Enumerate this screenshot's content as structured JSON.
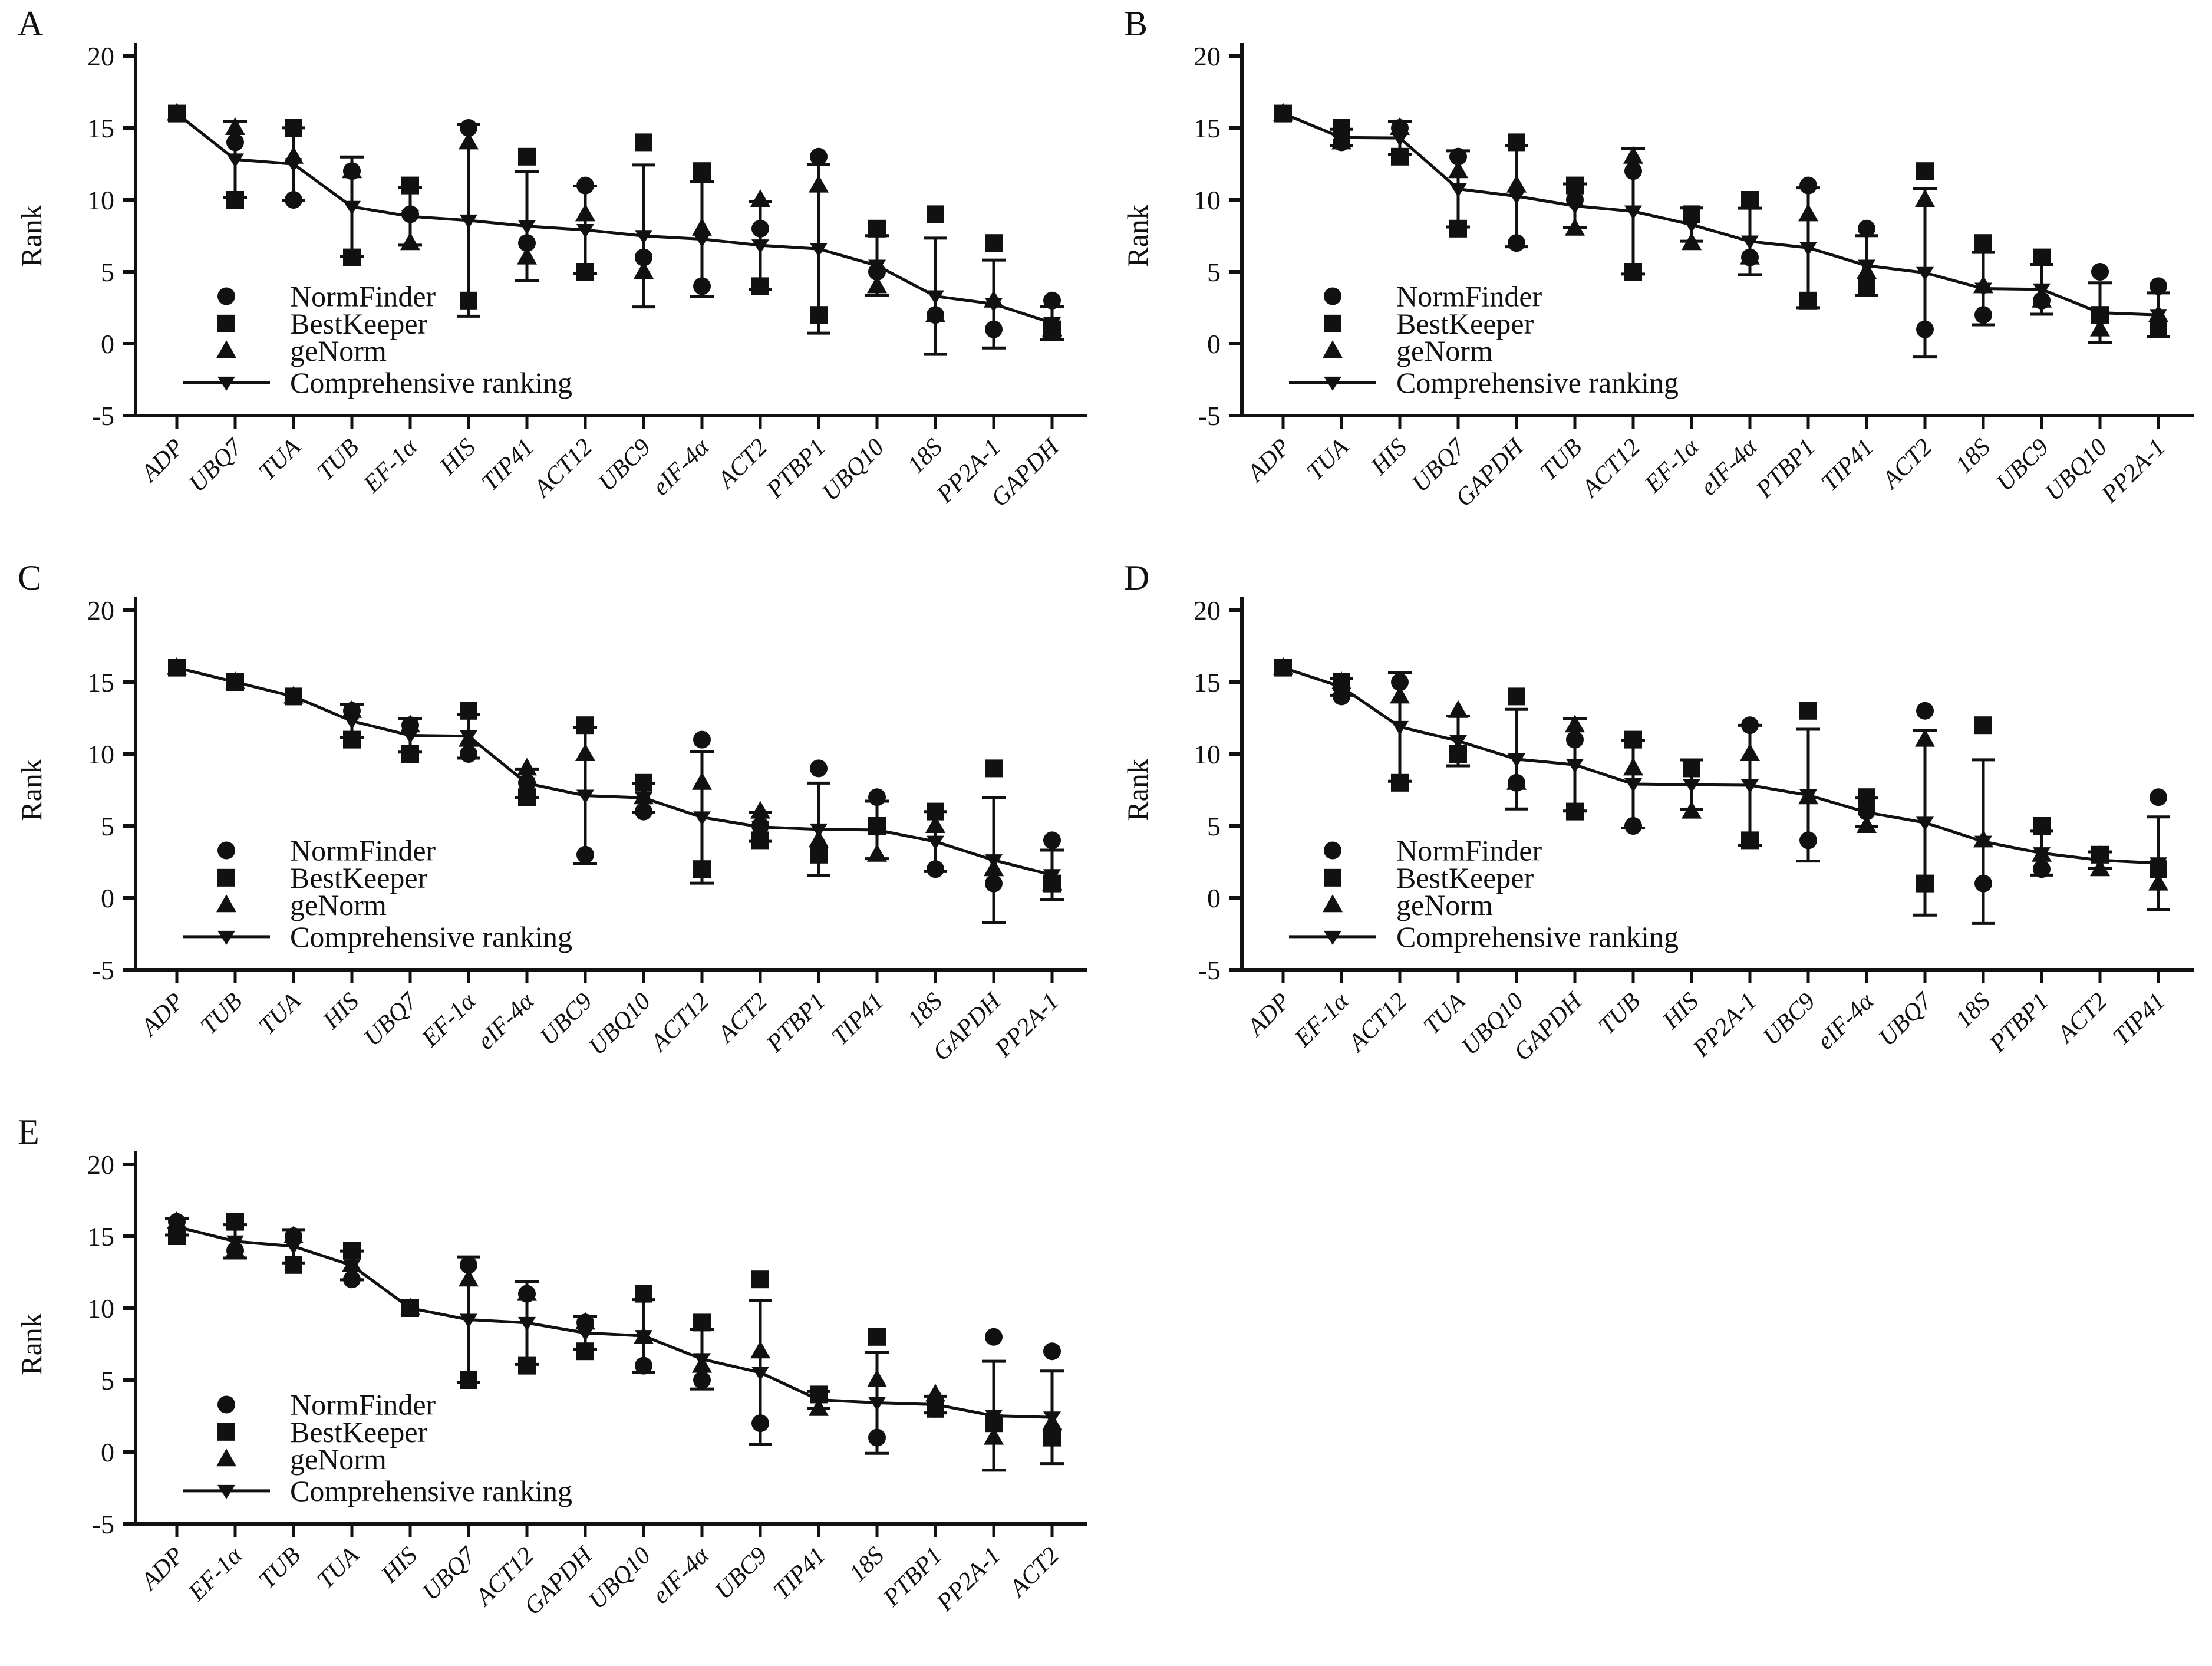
{
  "figure": {
    "background": "#ffffff",
    "ink": "#111111",
    "description": "Expression stability ranking of 16 candidate reference genes under five conditions (panels A-E)"
  },
  "axis": {
    "ylabel": "Rank",
    "ymin": -5,
    "ymax": 20,
    "yticks": [
      20,
      15,
      10,
      5,
      0,
      -5
    ]
  },
  "legend": [
    {
      "marker": "circle",
      "label": "NormFinder"
    },
    {
      "marker": "square",
      "label": "BestKeeper"
    },
    {
      "marker": "triangle-up",
      "label": "geNorm"
    },
    {
      "marker": "triangle-down-line",
      "label": "Comprehensive ranking"
    }
  ],
  "chart_data": [
    {
      "panel": "A",
      "type": "scatter",
      "ylabel": "Rank",
      "ylim": [
        -5,
        20
      ],
      "categories": [
        "ADP",
        "UBQ7",
        "TUA",
        "TUB",
        "EF-1α",
        "HIS",
        "TIP41",
        "ACT12",
        "UBC9",
        "eIF-4α",
        "ACT2",
        "PTBP1",
        "UBQ10",
        "18S",
        "PP2A-1",
        "GAPDH"
      ],
      "series": [
        {
          "name": "NormFinder",
          "marker": "circle",
          "values": [
            16,
            14,
            10,
            12,
            9,
            15,
            7,
            11,
            6,
            4,
            8,
            13,
            5,
            2,
            1,
            3
          ]
        },
        {
          "name": "BestKeeper",
          "marker": "square",
          "values": [
            16,
            10,
            15,
            6,
            11,
            3,
            13,
            5,
            14,
            12,
            4,
            2,
            8,
            9,
            7,
            1
          ]
        },
        {
          "name": "geNorm",
          "marker": "triangle-up",
          "values": [
            16,
            15,
            13,
            12,
            7,
            14,
            6,
            9,
            5,
            8,
            10,
            11,
            4,
            2,
            3,
            1
          ]
        },
        {
          "name": "Comprehensive ranking",
          "marker": "triangle-down",
          "values": [
            16,
            12.81,
            12.49,
            9.52,
            8.85,
            8.57,
            8.17,
            7.91,
            7.49,
            7.27,
            6.84,
            6.59,
            5.43,
            3.3,
            2.76,
            1.44
          ]
        }
      ],
      "error_bars": "comprehensive value ± SD of the three method ranks"
    },
    {
      "panel": "B",
      "type": "scatter",
      "ylabel": "Rank",
      "ylim": [
        -5,
        20
      ],
      "categories": [
        "ADP",
        "TUA",
        "HIS",
        "UBQ7",
        "GAPDH",
        "TUB",
        "ACT12",
        "EF-1α",
        "eIF-4α",
        "PTBP1",
        "TIP41",
        "ACT2",
        "18S",
        "UBC9",
        "UBQ10",
        "PP2A-1"
      ],
      "series": [
        {
          "name": "NormFinder",
          "marker": "circle",
          "values": [
            16,
            14,
            15,
            13,
            7,
            10,
            12,
            9,
            6,
            11,
            8,
            1,
            2,
            3,
            5,
            4
          ]
        },
        {
          "name": "BestKeeper",
          "marker": "square",
          "values": [
            16,
            15,
            13,
            8,
            14,
            11,
            5,
            9,
            10,
            3,
            4,
            12,
            7,
            6,
            2,
            1
          ]
        },
        {
          "name": "geNorm",
          "marker": "triangle-up",
          "values": [
            16,
            14,
            15,
            12,
            11,
            8,
            13,
            7,
            6,
            9,
            5,
            10,
            4,
            3,
            1,
            2
          ]
        },
        {
          "name": "Comprehensive ranking",
          "marker": "triangle-down",
          "values": [
            16,
            14.33,
            14.3,
            10.76,
            10.25,
            9.58,
            9.2,
            8.28,
            7.11,
            6.67,
            5.43,
            4.93,
            3.83,
            3.78,
            2.15,
            2.0
          ]
        }
      ],
      "error_bars": "comprehensive value ± SD of the three method ranks"
    },
    {
      "panel": "C",
      "type": "scatter",
      "ylabel": "Rank",
      "ylim": [
        -5,
        20
      ],
      "categories": [
        "ADP",
        "TUB",
        "TUA",
        "HIS",
        "UBQ7",
        "EF-1α",
        "eIF-4α",
        "UBC9",
        "UBQ10",
        "ACT12",
        "ACT2",
        "PTBP1",
        "TIP41",
        "18S",
        "GAPDH",
        "PP2A-1"
      ],
      "series": [
        {
          "name": "NormFinder",
          "marker": "circle",
          "values": [
            16,
            15,
            14,
            13,
            12,
            10,
            8,
            3,
            6,
            11,
            5,
            9,
            7,
            2,
            1,
            4
          ]
        },
        {
          "name": "BestKeeper",
          "marker": "square",
          "values": [
            16,
            15,
            14,
            11,
            10,
            13,
            7,
            12,
            8,
            2,
            4,
            3,
            5,
            6,
            9,
            1
          ]
        },
        {
          "name": "geNorm",
          "marker": "triangle-up",
          "values": [
            16,
            15,
            14,
            13,
            12,
            11,
            9,
            10,
            7,
            8,
            6,
            4,
            3,
            5,
            2,
            1
          ]
        },
        {
          "name": "Comprehensive ranking",
          "marker": "triangle-down",
          "values": [
            16,
            15,
            14,
            12.29,
            11.29,
            11.24,
            7.96,
            7.11,
            6.95,
            5.6,
            4.93,
            4.76,
            4.72,
            3.91,
            2.62,
            1.59
          ]
        }
      ],
      "error_bars": "comprehensive value ± SD of the three method ranks"
    },
    {
      "panel": "D",
      "type": "scatter",
      "ylabel": "Rank",
      "ylim": [
        -5,
        20
      ],
      "categories": [
        "ADP",
        "EF-1α",
        "ACT12",
        "TUA",
        "UBQ10",
        "GAPDH",
        "TUB",
        "HIS",
        "PP2A-1",
        "UBC9",
        "eIF-4α",
        "UBQ7",
        "18S",
        "PTBP1",
        "ACT2",
        "TIP41"
      ],
      "series": [
        {
          "name": "NormFinder",
          "marker": "circle",
          "values": [
            16,
            14,
            15,
            10,
            8,
            11,
            5,
            9,
            12,
            4,
            6,
            13,
            1,
            2,
            3,
            7
          ]
        },
        {
          "name": "BestKeeper",
          "marker": "square",
          "values": [
            16,
            15,
            8,
            10,
            14,
            6,
            11,
            9,
            4,
            13,
            7,
            1,
            12,
            5,
            3,
            2
          ]
        },
        {
          "name": "geNorm",
          "marker": "triangle-up",
          "values": [
            16,
            15,
            14,
            13,
            8,
            12,
            9,
            6,
            10,
            7,
            5,
            11,
            4,
            3,
            2,
            1
          ]
        },
        {
          "name": "Comprehensive ranking",
          "marker": "triangle-down",
          "values": [
            16,
            14.66,
            11.89,
            10.91,
            9.64,
            9.25,
            7.91,
            7.86,
            7.83,
            7.14,
            5.94,
            5.23,
            3.91,
            3.11,
            2.62,
            2.41
          ]
        }
      ],
      "error_bars": "comprehensive value ± SD of the three method ranks"
    },
    {
      "panel": "E",
      "type": "scatter",
      "ylabel": "Rank",
      "ylim": [
        -5,
        20
      ],
      "categories": [
        "ADP",
        "EF-1α",
        "TUB",
        "TUA",
        "HIS",
        "UBQ7",
        "ACT12",
        "GAPDH",
        "UBQ10",
        "eIF-4α",
        "UBC9",
        "TIP41",
        "18S",
        "PTBP1",
        "PP2A-1",
        "ACT2"
      ],
      "series": [
        {
          "name": "NormFinder",
          "marker": "circle",
          "values": [
            16,
            14,
            15,
            12,
            10,
            13,
            11,
            9,
            6,
            5,
            2,
            4,
            1,
            3,
            8,
            7
          ]
        },
        {
          "name": "BestKeeper",
          "marker": "square",
          "values": [
            15,
            16,
            13,
            14,
            10,
            5,
            6,
            7,
            11,
            9,
            12,
            4,
            8,
            3,
            2,
            1
          ]
        },
        {
          "name": "geNorm",
          "marker": "triangle-up",
          "values": [
            16,
            14,
            15,
            13,
            10,
            12,
            11,
            9,
            8,
            6,
            7,
            3,
            5,
            4,
            1,
            2
          ]
        },
        {
          "name": "Comprehensive ranking",
          "marker": "triangle-down",
          "values": [
            15.66,
            14.64,
            14.3,
            12.97,
            10.0,
            9.2,
            8.98,
            8.28,
            8.07,
            6.46,
            5.52,
            3.63,
            3.42,
            3.3,
            2.52,
            2.41
          ]
        }
      ],
      "error_bars": "comprehensive value ± SD of the three method ranks"
    }
  ]
}
